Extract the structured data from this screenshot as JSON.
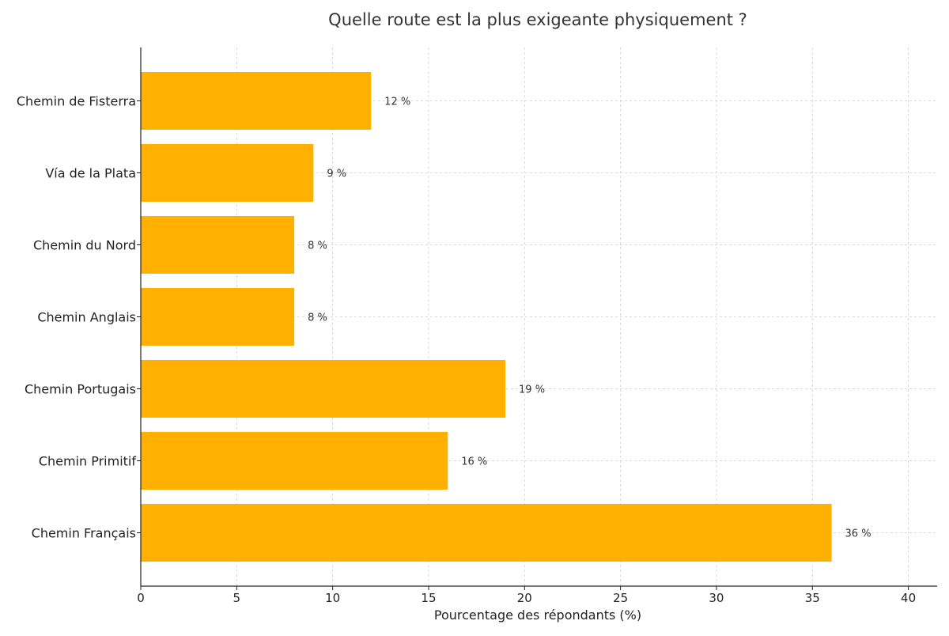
{
  "chart_data": {
    "type": "bar",
    "orientation": "horizontal",
    "title": "Quelle route est la plus exigeante physiquement ?",
    "xlabel": "Pourcentage des répondants (%)",
    "ylabel": "",
    "xlim": [
      0,
      41.5
    ],
    "xticks": [
      0,
      5,
      10,
      15,
      20,
      25,
      30,
      35,
      40
    ],
    "grid": true,
    "bar_color": "#FFB000",
    "categories": [
      "Chemin de Fisterra",
      "Vía de la Plata",
      "Chemin du Nord",
      "Chemin Anglais",
      "Chemin Portugais",
      "Chemin Primitif",
      "Chemin Français"
    ],
    "values": [
      12,
      9,
      8,
      8,
      19,
      16,
      36
    ],
    "data_labels": [
      "12 %",
      "9 %",
      "8 %",
      "8 %",
      "19 %",
      "16 %",
      "36 %"
    ]
  }
}
